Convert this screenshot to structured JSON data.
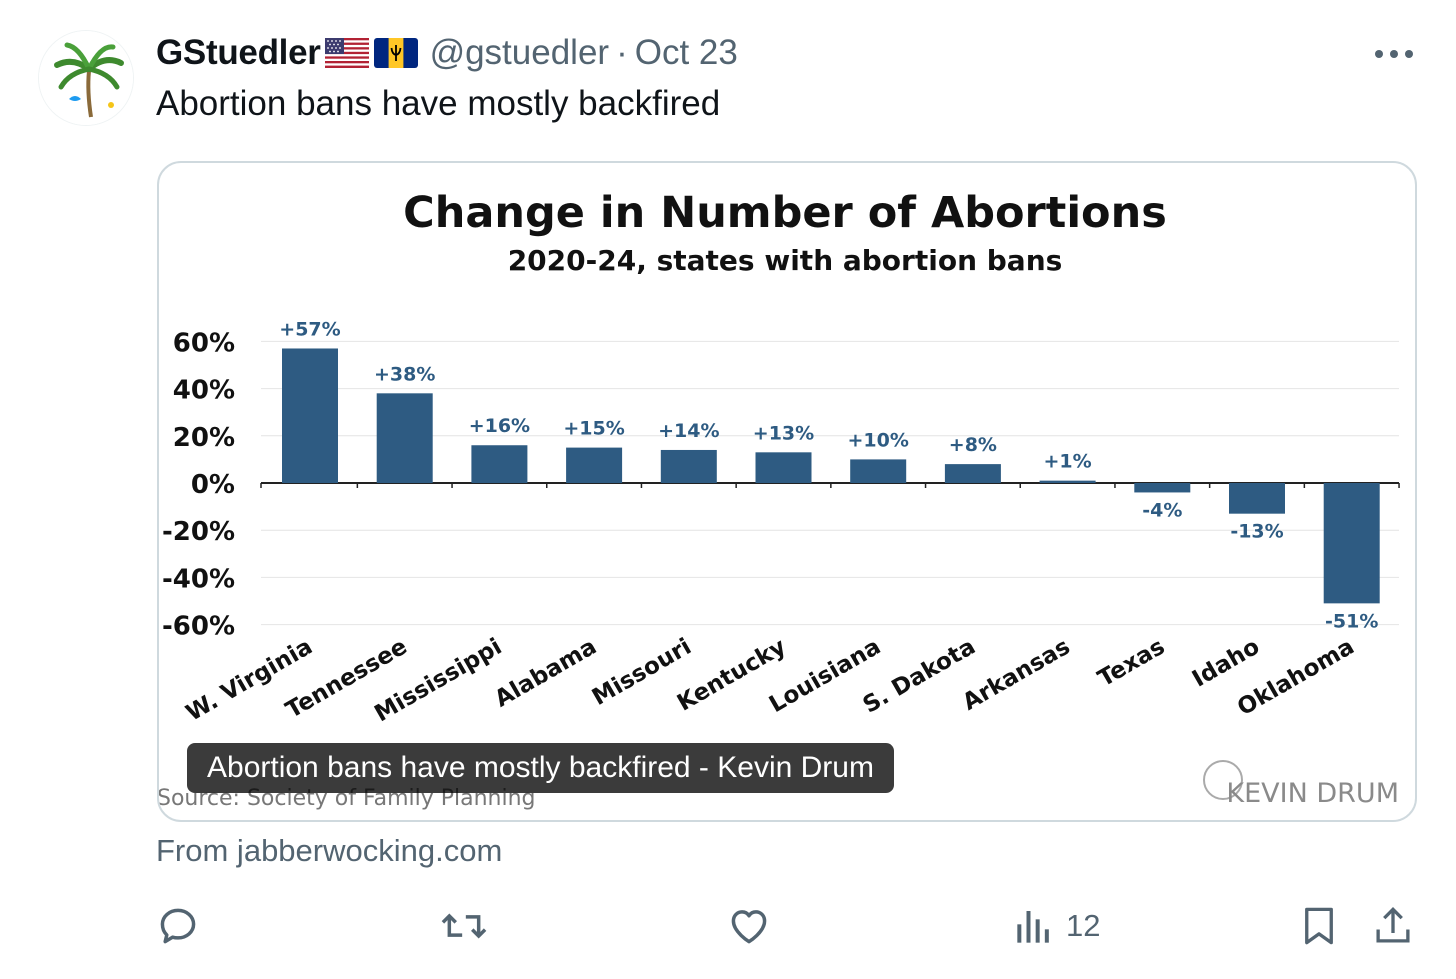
{
  "tweet": {
    "display_name": "GStuedler",
    "handle": "@gstuedler",
    "separator": "·",
    "time": "Oct 23",
    "text": "Abortion bans have mostly backfired"
  },
  "card": {
    "caption": "Abortion bans have mostly backfired - Kevin Drum",
    "source_note": "Source: Society of Family Planning",
    "watermark": "KEVIN DRUM",
    "from_label": "From jabberwocking.com"
  },
  "chart_data": {
    "type": "bar",
    "title": "Change in Number of Abortions",
    "subtitle": "2020-24, states with abortion bans",
    "categories": [
      "W. Virginia",
      "Tennessee",
      "Mississippi",
      "Alabama",
      "Missouri",
      "Kentucky",
      "Louisiana",
      "S. Dakota",
      "Arkansas",
      "Texas",
      "Idaho",
      "Oklahoma"
    ],
    "values": [
      57,
      38,
      16,
      15,
      14,
      13,
      10,
      8,
      1,
      -4,
      -13,
      -51
    ],
    "data_labels": [
      "+57%",
      "+38%",
      "+16%",
      "+15%",
      "+14%",
      "+13%",
      "+10%",
      "+8%",
      "+1%",
      "-4%",
      "-13%",
      "-51%"
    ],
    "yticks": [
      60,
      40,
      20,
      0,
      -20,
      -40,
      -60
    ],
    "ytick_labels": [
      "60%",
      "40%",
      "20%",
      "0%",
      "-20%",
      "-40%",
      "-60%"
    ],
    "ylim": [
      -60,
      60
    ],
    "grid": true,
    "bar_color": "#2e5b82"
  },
  "actions": {
    "views_count": "12"
  },
  "colors": {
    "text_primary": "#0f1419",
    "text_secondary": "#536471",
    "border": "#cfd9de",
    "bar": "#2e5b82"
  },
  "icons": [
    "reply-icon",
    "retweet-icon",
    "like-icon",
    "views-icon",
    "bookmark-icon",
    "share-icon",
    "more-icon"
  ]
}
